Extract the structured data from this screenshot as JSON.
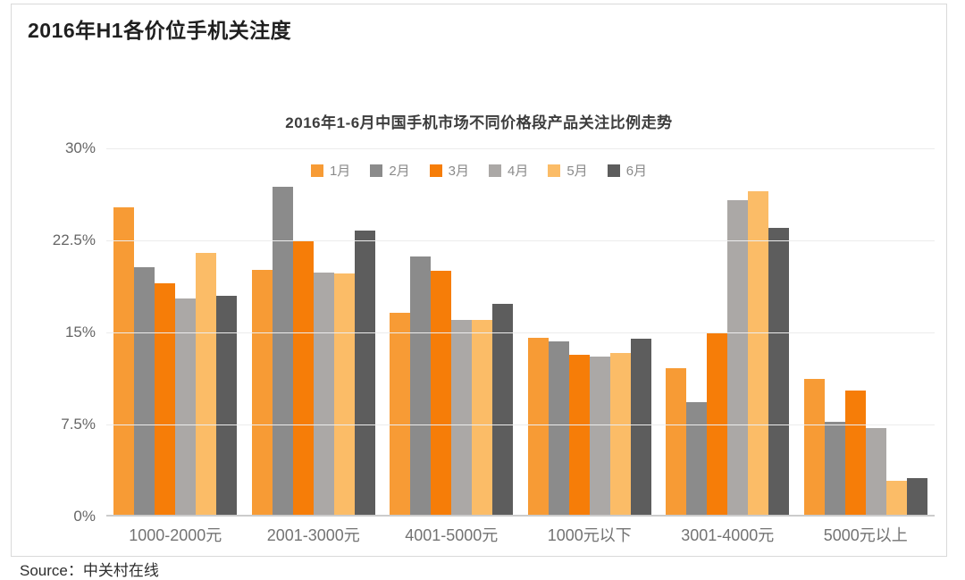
{
  "header": {
    "title": "2016年H1各价位手机关注度"
  },
  "chart": {
    "subtitle": "2016年1-6月中国手机市场不同价格段产品关注比例走势"
  },
  "chart_data": {
    "type": "bar",
    "title": "2016年1-6月中国手机市场不同价格段产品关注比例走势",
    "xlabel": "",
    "ylabel": "",
    "ylim": [
      0,
      30
    ],
    "y_ticks": [
      "30%",
      "22.5%",
      "15%",
      "7.5%",
      "0%"
    ],
    "grid": "horizontal",
    "legend_position": "top-center",
    "categories": [
      "1000-2000元",
      "2001-3000元",
      "4001-5000元",
      "1000元以下",
      "3001-4000元",
      "5000元以上"
    ],
    "series": [
      {
        "name": "1月",
        "color": "#F79B35",
        "values": [
          25.2,
          20.1,
          16.6,
          14.6,
          12.1,
          11.2
        ]
      },
      {
        "name": "2月",
        "color": "#8B8B8B",
        "values": [
          20.3,
          26.9,
          21.2,
          14.3,
          9.3,
          7.7
        ]
      },
      {
        "name": "3月",
        "color": "#F67D08",
        "values": [
          19.0,
          22.4,
          20.0,
          13.2,
          15.0,
          10.3
        ]
      },
      {
        "name": "4月",
        "color": "#ABA8A6",
        "values": [
          17.8,
          19.9,
          16.0,
          13.0,
          25.8,
          7.2
        ]
      },
      {
        "name": "5月",
        "color": "#FBBC67",
        "values": [
          21.5,
          19.8,
          16.0,
          13.3,
          26.5,
          2.9
        ]
      },
      {
        "name": "6月",
        "color": "#5D5D5D",
        "values": [
          18.0,
          23.3,
          17.3,
          14.5,
          23.5,
          3.1
        ]
      }
    ]
  },
  "footer": {
    "source": "Source：中关村在线"
  }
}
